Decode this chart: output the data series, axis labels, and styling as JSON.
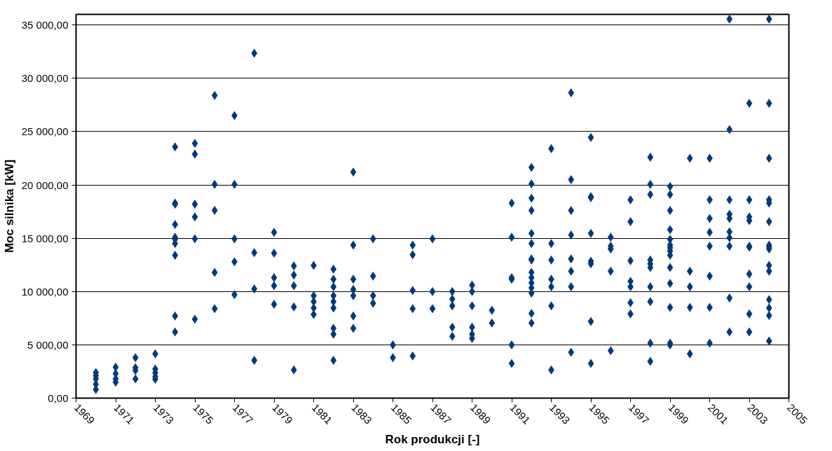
{
  "chart_data": {
    "type": "scatter",
    "xlabel": "Rok produkcji [-]",
    "ylabel": "Moc silnika [kW]",
    "xlim": [
      1969,
      2005
    ],
    "ylim": [
      0,
      36000
    ],
    "xticks": [
      1969,
      1971,
      1973,
      1975,
      1977,
      1979,
      1981,
      1983,
      1985,
      1987,
      1989,
      1991,
      1993,
      1995,
      1997,
      1999,
      2001,
      2003,
      2005
    ],
    "yticks": [
      {
        "value": 0,
        "label": "0,00"
      },
      {
        "value": 5000,
        "label": "5 000,00"
      },
      {
        "value": 10000,
        "label": "10 000,00"
      },
      {
        "value": 15000,
        "label": "15 000,00"
      },
      {
        "value": 20000,
        "label": "20 000,00"
      },
      {
        "value": 25000,
        "label": "25 000,00"
      },
      {
        "value": 30000,
        "label": "30 000,00"
      },
      {
        "value": 35000,
        "label": "35 000,00"
      }
    ],
    "grid": "y",
    "marker": "diamond",
    "series": [
      {
        "color": "#003a78",
        "x": [
          1970,
          1970,
          1970,
          1970,
          1970,
          1971,
          1971,
          1971,
          1971,
          1972,
          1972,
          1972,
          1972,
          1973,
          1973,
          1973,
          1973,
          1973,
          1974,
          1974,
          1974,
          1974,
          1974,
          1974,
          1974,
          1974,
          1974,
          1974,
          1975,
          1975,
          1975,
          1975,
          1975,
          1975,
          1976,
          1976,
          1976,
          1976,
          1976,
          1977,
          1977,
          1977,
          1977,
          1977,
          1978,
          1978,
          1978,
          1978,
          1979,
          1979,
          1979,
          1979,
          1979,
          1980,
          1980,
          1980,
          1980,
          1980,
          1981,
          1981,
          1981,
          1981,
          1981,
          1982,
          1982,
          1982,
          1982,
          1982,
          1982,
          1982,
          1982,
          1982,
          1983,
          1983,
          1983,
          1983,
          1983,
          1983,
          1983,
          1984,
          1984,
          1984,
          1984,
          1985,
          1985,
          1986,
          1986,
          1986,
          1986,
          1986,
          1987,
          1987,
          1987,
          1988,
          1988,
          1988,
          1988,
          1988,
          1989,
          1989,
          1989,
          1989,
          1989,
          1989,
          1990,
          1990,
          1991,
          1991,
          1991,
          1991,
          1991,
          1991,
          1992,
          1992,
          1992,
          1992,
          1992,
          1992,
          1992,
          1992,
          1992,
          1992,
          1992,
          1992,
          1992,
          1992,
          1992,
          1993,
          1993,
          1993,
          1993,
          1993,
          1993,
          1993,
          1994,
          1994,
          1994,
          1994,
          1994,
          1994,
          1994,
          1994,
          1995,
          1995,
          1995,
          1995,
          1995,
          1995,
          1995,
          1995,
          1996,
          1996,
          1996,
          1996,
          1996,
          1997,
          1997,
          1997,
          1997,
          1997,
          1997,
          1997,
          1998,
          1998,
          1998,
          1998,
          1998,
          1998,
          1998,
          1998,
          1998,
          1998,
          1999,
          1999,
          1999,
          1999,
          1999,
          1999,
          1999,
          1999,
          1999,
          1999,
          1999,
          1999,
          1999,
          1999,
          2000,
          2000,
          2000,
          2000,
          2000,
          2001,
          2001,
          2001,
          2001,
          2001,
          2001,
          2001,
          2001,
          2002,
          2002,
          2002,
          2002,
          2002,
          2002,
          2002,
          2002,
          2002,
          2002,
          2003,
          2003,
          2003,
          2003,
          2003,
          2003,
          2003,
          2003,
          2003,
          2003,
          2004,
          2004,
          2004,
          2004,
          2004,
          2004,
          2004,
          2004,
          2004,
          2004,
          2004,
          2004,
          2004,
          2004,
          2004
        ],
        "values": [
          800,
          1300,
          1800,
          2100,
          2400,
          2900,
          2300,
          1800,
          1500,
          3800,
          2850,
          2600,
          1800,
          4160,
          2730,
          2380,
          2020,
          1780,
          23570,
          18300,
          18200,
          16300,
          15100,
          14900,
          14500,
          13400,
          7700,
          6200,
          23900,
          22900,
          18200,
          17000,
          14950,
          7400,
          28400,
          20050,
          17600,
          11800,
          8400,
          26500,
          20050,
          14950,
          12800,
          9700,
          32350,
          13650,
          10250,
          3550,
          15550,
          13600,
          11300,
          10550,
          8800,
          12400,
          11550,
          10550,
          8550,
          2650,
          12450,
          9600,
          9050,
          8450,
          7850,
          12100,
          11150,
          10450,
          9600,
          9050,
          8450,
          6550,
          6000,
          3550,
          21200,
          14350,
          11150,
          10200,
          9600,
          7700,
          6550,
          14950,
          11450,
          9600,
          8900,
          5000,
          3800,
          14350,
          13450,
          10100,
          8400,
          3950,
          14950,
          10000,
          8400,
          10000,
          9300,
          8650,
          6650,
          5800,
          10600,
          10000,
          8650,
          6650,
          6000,
          5600,
          8250,
          7050,
          18300,
          15100,
          11300,
          11150,
          5000,
          3250,
          21650,
          20100,
          18750,
          17600,
          15450,
          14500,
          13050,
          12950,
          11800,
          11300,
          10800,
          10350,
          9850,
          7950,
          7050,
          23400,
          14500,
          12950,
          11150,
          10450,
          8650,
          2650,
          28650,
          20500,
          17600,
          15300,
          13050,
          11900,
          10450,
          4300,
          24450,
          18900,
          18800,
          15450,
          12850,
          12600,
          7200,
          3250,
          15100,
          14250,
          14000,
          11900,
          4450,
          18600,
          16550,
          12900,
          10950,
          10450,
          8950,
          7900,
          22600,
          20050,
          19100,
          12950,
          12600,
          12250,
          10450,
          9050,
          5150,
          3450,
          19850,
          19100,
          17600,
          15800,
          14900,
          14350,
          14100,
          13800,
          13400,
          12250,
          10750,
          8500,
          5150,
          5000,
          22500,
          11900,
          10450,
          8500,
          4150,
          22500,
          18600,
          16850,
          15550,
          14250,
          11450,
          8500,
          5150,
          35550,
          25200,
          18600,
          17250,
          16850,
          15600,
          15050,
          14250,
          9400,
          6200,
          27650,
          18600,
          17000,
          16650,
          14250,
          14150,
          11650,
          10450,
          7900,
          6200,
          35550,
          27650,
          22500,
          18600,
          18300,
          16550,
          14350,
          14200,
          14000,
          12450,
          11900,
          9250,
          8450,
          7750,
          5350
        ]
      }
    ]
  }
}
